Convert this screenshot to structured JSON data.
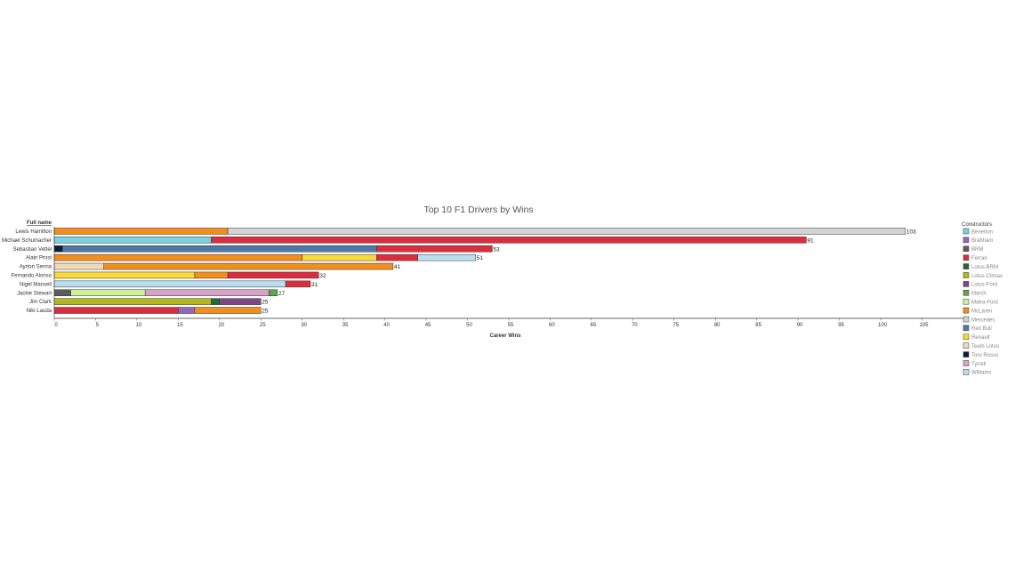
{
  "chart_data": {
    "type": "bar",
    "orientation": "horizontal",
    "stacked": true,
    "title": "Top 10 F1 Drivers by Wins",
    "row_header": "Full name",
    "xlabel": "Career Wins",
    "xlim": [
      0,
      110
    ],
    "xticks": [
      0,
      5,
      10,
      15,
      20,
      25,
      30,
      35,
      40,
      45,
      50,
      55,
      60,
      65,
      70,
      75,
      80,
      85,
      90,
      95,
      100,
      105
    ],
    "grid": false,
    "legend": {
      "title": "Constructors",
      "position": "right",
      "items": [
        {
          "name": "Benetton",
          "color": "#7ad1e0"
        },
        {
          "name": "Brabham",
          "color": "#9467bd"
        },
        {
          "name": "BRM",
          "color": "#5b5b5b"
        },
        {
          "name": "Ferrari",
          "color": "#dc2d3e"
        },
        {
          "name": "Lotus-BRM",
          "color": "#1e6b37"
        },
        {
          "name": "Lotus-Climax",
          "color": "#b3b820"
        },
        {
          "name": "Lotus-Ford",
          "color": "#7b4a83"
        },
        {
          "name": "March",
          "color": "#5aa64c"
        },
        {
          "name": "Matra-Ford",
          "color": "#cdf29a"
        },
        {
          "name": "McLaren",
          "color": "#f28e1c"
        },
        {
          "name": "Mercedes",
          "color": "#d3d3d3"
        },
        {
          "name": "Red Bull",
          "color": "#4e79a7"
        },
        {
          "name": "Renault",
          "color": "#f9d93c"
        },
        {
          "name": "Team Lotus",
          "color": "#f0dbb5"
        },
        {
          "name": "Toro Rosso",
          "color": "#0b1f3a"
        },
        {
          "name": "Tyrrell",
          "color": "#d8a3c9"
        },
        {
          "name": "Williams",
          "color": "#b9dff0"
        }
      ]
    },
    "rows": [
      {
        "driver": "Lewis Hamilton",
        "total": 103,
        "segments": [
          [
            "McLaren",
            21
          ],
          [
            "Mercedes",
            82
          ]
        ]
      },
      {
        "driver": "Michael Schumacher",
        "total": 91,
        "segments": [
          [
            "Benetton",
            19
          ],
          [
            "Ferrari",
            72
          ]
        ]
      },
      {
        "driver": "Sebastian Vettel",
        "total": 53,
        "segments": [
          [
            "Toro Rosso",
            1
          ],
          [
            "Red Bull",
            38
          ],
          [
            "Ferrari",
            14
          ]
        ]
      },
      {
        "driver": "Alain Prost",
        "total": 51,
        "segments": [
          [
            "McLaren",
            30
          ],
          [
            "Renault",
            9
          ],
          [
            "Ferrari",
            5
          ],
          [
            "Williams",
            7
          ]
        ]
      },
      {
        "driver": "Ayrton Senna",
        "total": 41,
        "segments": [
          [
            "Team Lotus",
            6
          ],
          [
            "McLaren",
            35
          ]
        ]
      },
      {
        "driver": "Fernando Alonso",
        "total": 32,
        "segments": [
          [
            "Renault",
            17
          ],
          [
            "McLaren",
            4
          ],
          [
            "Ferrari",
            11
          ]
        ]
      },
      {
        "driver": "Nigel Mansell",
        "total": 31,
        "segments": [
          [
            "Williams",
            28
          ],
          [
            "Ferrari",
            3
          ]
        ]
      },
      {
        "driver": "Jackie Stewart",
        "total": 27,
        "segments": [
          [
            "BRM",
            2
          ],
          [
            "Matra-Ford",
            9
          ],
          [
            "Tyrrell",
            15
          ],
          [
            "March",
            1
          ]
        ]
      },
      {
        "driver": "Jim Clark",
        "total": 25,
        "segments": [
          [
            "Lotus-Climax",
            19
          ],
          [
            "Lotus-BRM",
            1
          ],
          [
            "Lotus-Ford",
            5
          ]
        ]
      },
      {
        "driver": "Niki Lauda",
        "total": 25,
        "segments": [
          [
            "Ferrari",
            15
          ],
          [
            "Brabham",
            2
          ],
          [
            "McLaren",
            8
          ]
        ]
      }
    ]
  }
}
